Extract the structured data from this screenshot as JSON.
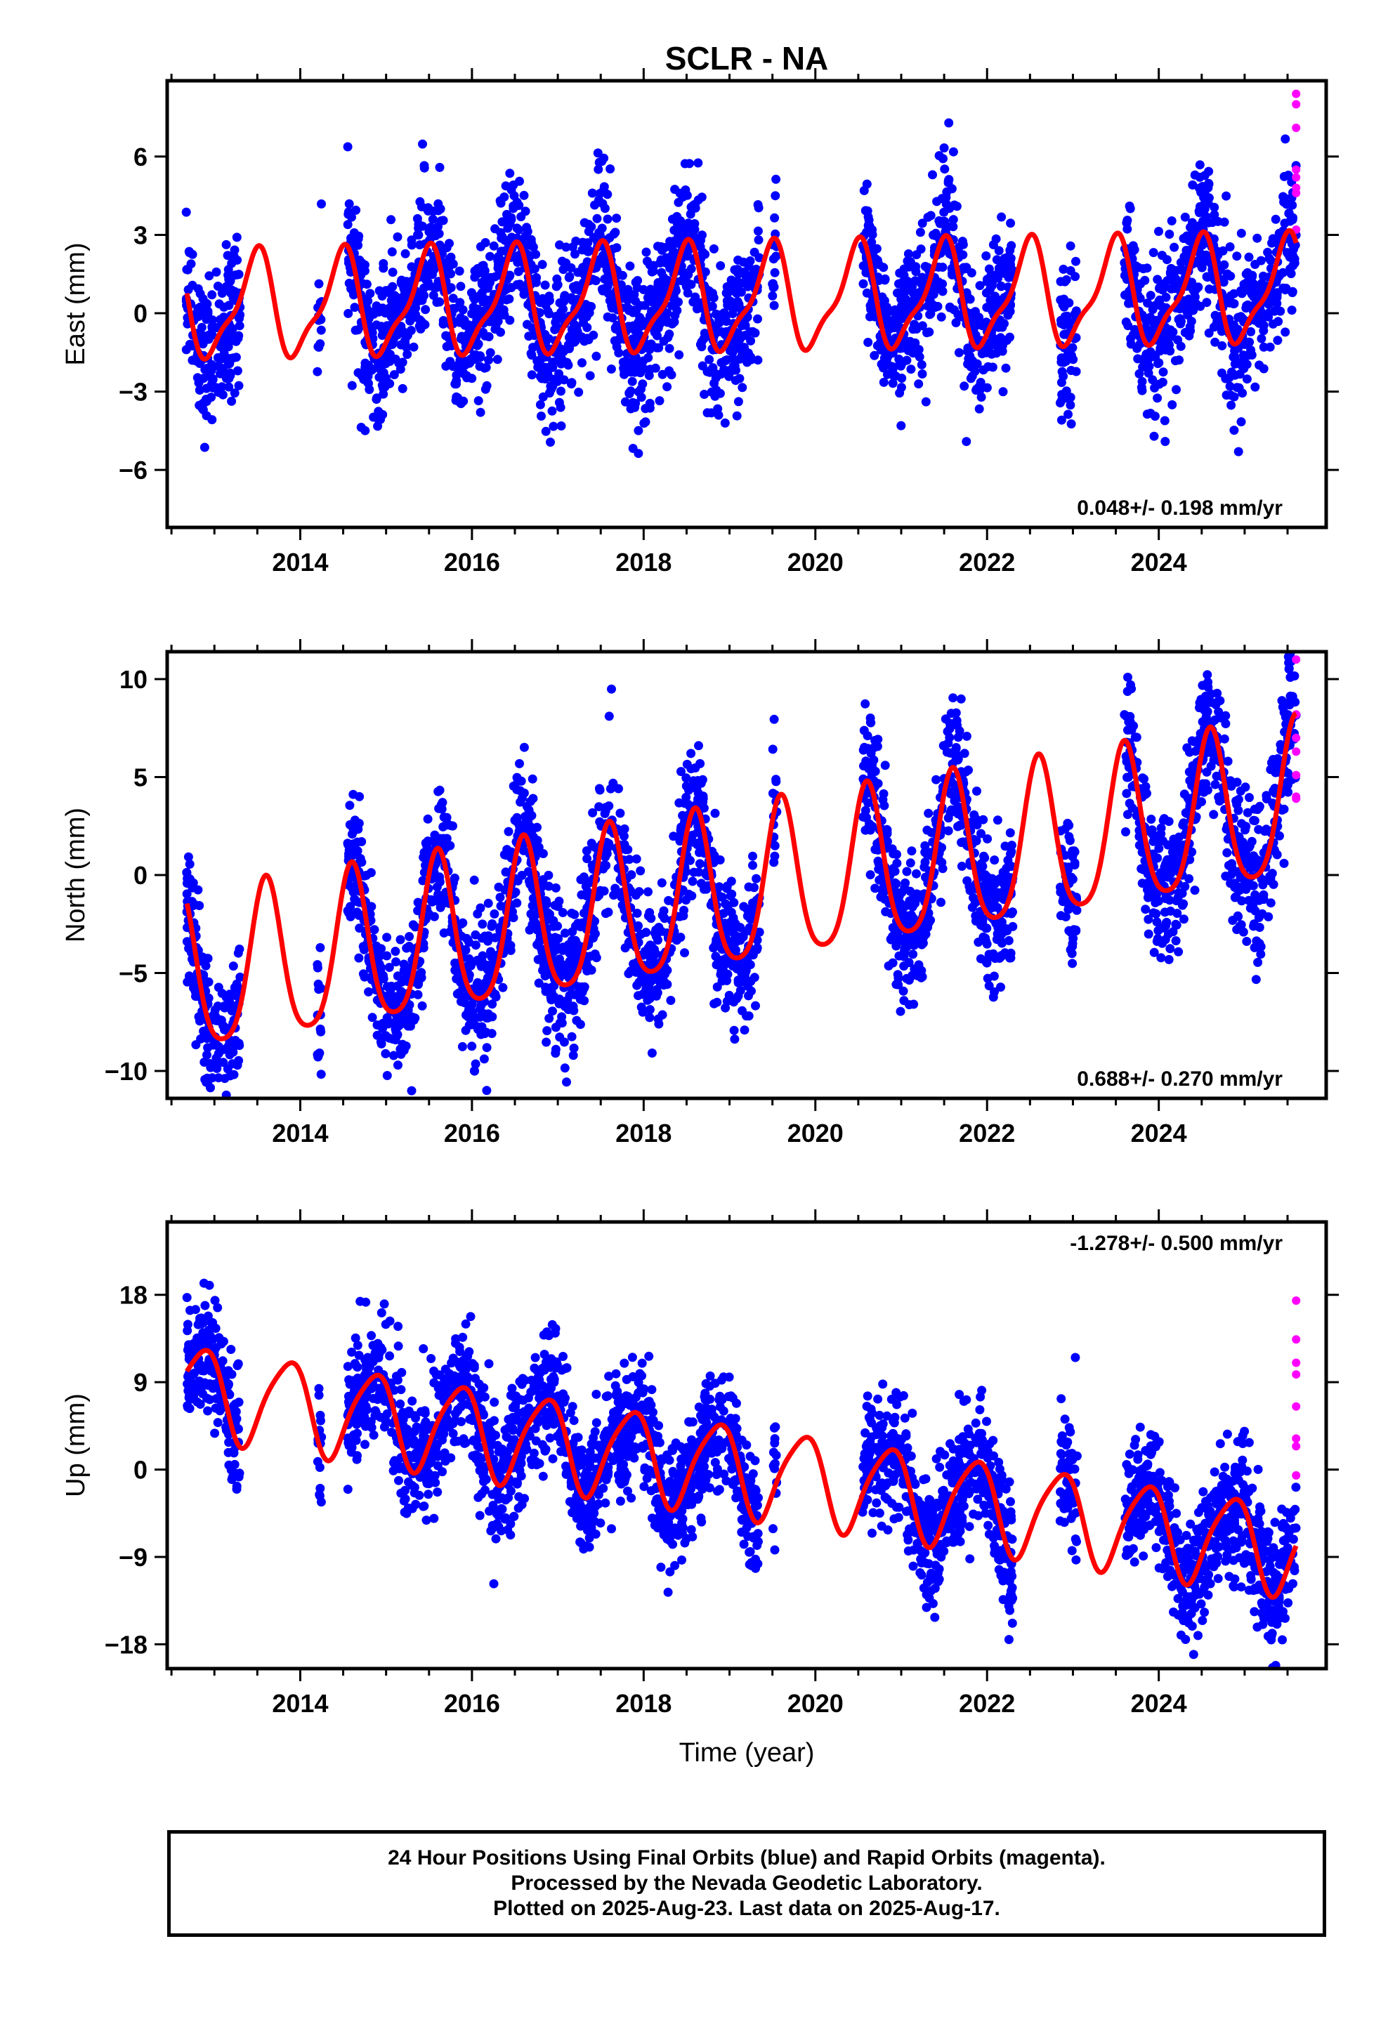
{
  "chart_data": [
    {
      "type": "scatter",
      "title": "SCLR - NA",
      "ylabel": "East (mm)",
      "xlabel": "",
      "xlim": [
        2012.45,
        2025.95
      ],
      "ylim": [
        -8.2,
        8.9
      ],
      "xticks": [
        2014,
        2016,
        2018,
        2020,
        2022,
        2024
      ],
      "xtick_labels": [
        "2014",
        "2016",
        "2018",
        "2020",
        "2022",
        "2024"
      ],
      "yticks": [
        -6,
        -3,
        0,
        3,
        6
      ],
      "ytick_labels": [
        "−6",
        "−3",
        "0",
        "3",
        "6"
      ],
      "rate_label": "0.048+/- 0.198 mm/yr",
      "rate_position": "bottom-right",
      "colors": {
        "final": "#0000ff",
        "rapid": "#ff00ff",
        "model": "#ff0000"
      },
      "model": {
        "amp1": 1.9,
        "phase1": -1.4,
        "amp2": 0.6,
        "phase2": 0.8,
        "trend": 0.048,
        "offset": 0.2
      },
      "data_spans": [
        [
          2012.67,
          2013.3
        ],
        [
          2014.2,
          2014.25
        ],
        [
          2014.55,
          2019.35
        ],
        [
          2019.5,
          2019.55
        ],
        [
          2020.55,
          2022.3
        ],
        [
          2022.85,
          2023.05
        ],
        [
          2023.6,
          2025.6
        ]
      ],
      "scatter_noise": 1.4,
      "series": [
        {
          "name": "Final Orbits",
          "color": "#0000ff"
        },
        {
          "name": "Rapid Orbits",
          "color": "#ff00ff",
          "x": [
            2025.6,
            2025.6,
            2025.6,
            2025.6,
            2025.6,
            2025.6,
            2025.6,
            2025.6
          ],
          "y": [
            8.4,
            8.0,
            7.1,
            5.5,
            5.2,
            4.8,
            4.6,
            3.2
          ]
        }
      ]
    },
    {
      "type": "scatter",
      "title": "",
      "ylabel": "North (mm)",
      "xlabel": "",
      "xlim": [
        2012.45,
        2025.95
      ],
      "ylim": [
        -11.4,
        11.4
      ],
      "xticks": [
        2014,
        2016,
        2018,
        2020,
        2022,
        2024
      ],
      "xtick_labels": [
        "2014",
        "2016",
        "2018",
        "2020",
        "2022",
        "2024"
      ],
      "yticks": [
        -10,
        -5,
        0,
        5,
        10
      ],
      "ytick_labels": [
        "−10",
        "−5",
        "0",
        "5",
        "10"
      ],
      "rate_label": "0.688+/- 0.270 mm/yr",
      "rate_position": "bottom-right",
      "colors": {
        "final": "#0000ff",
        "rapid": "#ff00ff",
        "model": "#ff0000"
      },
      "model": {
        "amp1": 4.0,
        "phase1": -2.2,
        "amp2": 0.7,
        "phase2": 0.3,
        "trend": 0.688,
        "offset": -5.5
      },
      "data_spans": [
        [
          2012.67,
          2013.3
        ],
        [
          2014.2,
          2014.25
        ],
        [
          2014.55,
          2019.35
        ],
        [
          2019.5,
          2019.55
        ],
        [
          2020.55,
          2022.3
        ],
        [
          2022.85,
          2023.05
        ],
        [
          2023.6,
          2025.6
        ]
      ],
      "scatter_noise": 1.8,
      "series": [
        {
          "name": "Final Orbits",
          "color": "#0000ff"
        },
        {
          "name": "Rapid Orbits",
          "color": "#ff00ff",
          "x": [
            2025.6,
            2025.6,
            2025.6,
            2025.6,
            2025.6,
            2025.6,
            2025.6
          ],
          "y": [
            11.0,
            8.2,
            7.0,
            6.3,
            5.1,
            4.0,
            3.9
          ]
        }
      ]
    },
    {
      "type": "scatter",
      "title": "",
      "ylabel": "Up (mm)",
      "xlabel": "Time (year)",
      "xlim": [
        2012.45,
        2025.95
      ],
      "ylim": [
        -20.5,
        25.5
      ],
      "xticks": [
        2014,
        2016,
        2018,
        2020,
        2022,
        2024
      ],
      "xtick_labels": [
        "2014",
        "2016",
        "2018",
        "2020",
        "2022",
        "2024"
      ],
      "yticks": [
        -18,
        -9,
        0,
        9,
        18
      ],
      "ytick_labels": [
        "−18",
        "−9",
        "0",
        "9",
        "18"
      ],
      "rate_label": "-1.278+/- 0.500 mm/yr",
      "rate_position": "top-right",
      "colors": {
        "final": "#0000ff",
        "rapid": "#ff00ff",
        "model": "#ff0000"
      },
      "model": {
        "amp1": 4.6,
        "phase1": 2.5,
        "amp2": 0.8,
        "phase2": 1.2,
        "trend": -1.278,
        "offset": 8.5
      },
      "data_spans": [
        [
          2012.67,
          2013.3
        ],
        [
          2014.2,
          2014.25
        ],
        [
          2014.55,
          2019.35
        ],
        [
          2019.5,
          2019.55
        ],
        [
          2020.55,
          2022.3
        ],
        [
          2022.85,
          2023.05
        ],
        [
          2023.6,
          2025.6
        ]
      ],
      "scatter_noise": 3.2,
      "series": [
        {
          "name": "Final Orbits",
          "color": "#0000ff"
        },
        {
          "name": "Rapid Orbits",
          "color": "#ff00ff",
          "x": [
            2025.6,
            2025.6,
            2025.6,
            2025.6,
            2025.6,
            2025.6,
            2025.6,
            2025.6
          ],
          "y": [
            17.4,
            13.4,
            11.0,
            9.8,
            6.5,
            3.2,
            2.4,
            -0.6
          ]
        }
      ]
    }
  ],
  "footer": {
    "line1": "24 Hour Positions Using Final Orbits (blue) and Rapid Orbits (magenta).",
    "line2": "Processed by the Nevada Geodetic Laboratory.",
    "line3": "Plotted on 2025-Aug-23. Last data on 2025-Aug-17."
  }
}
